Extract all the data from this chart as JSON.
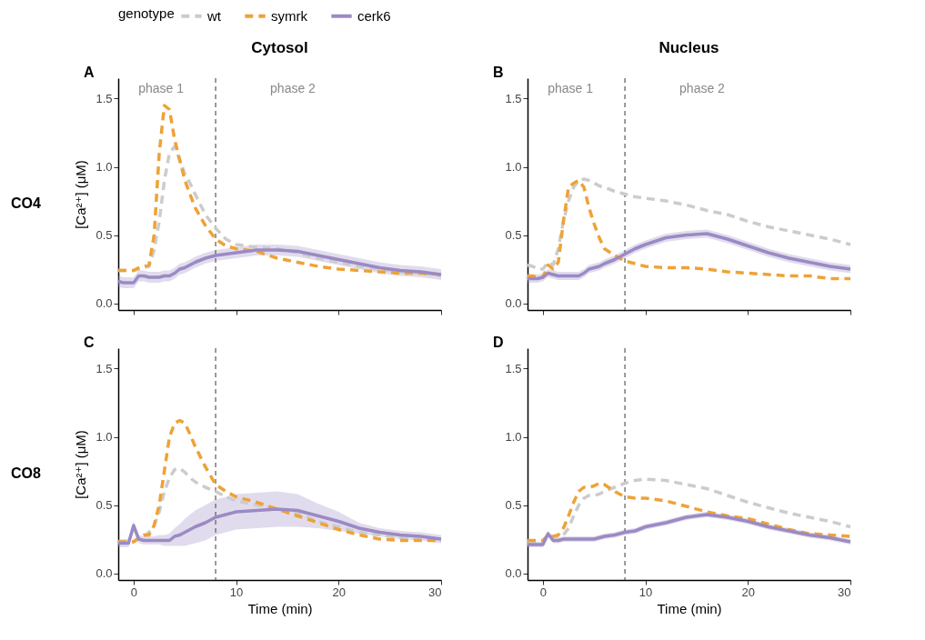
{
  "chart_data": [
    {
      "type": "line",
      "title": "Cytosol",
      "ylabel": "[Ca²⁺] (μM)",
      "legend_title": "genotype",
      "legend": "top",
      "tick_labels": "y",
      "annotations": [
        "A",
        "CO4",
        "phase 1",
        "phase 2"
      ],
      "ref_lines": [
        {
          "axis": "x",
          "value": 8,
          "color": "#666666",
          "line_style": "dashed"
        }
      ],
      "xlim": [
        -1.5,
        30
      ],
      "xticks": [
        0,
        10,
        20,
        30
      ],
      "ylim": [
        -0.05,
        1.65
      ],
      "yticks": [
        {
          "value": 0,
          "label": "0.0"
        },
        {
          "value": 0.5,
          "label": "0.5"
        },
        {
          "value": 1,
          "label": "1.0"
        },
        {
          "value": 1.5,
          "label": "1.5"
        }
      ],
      "x": [
        -1.5,
        -1,
        -0.5,
        0,
        0.5,
        1,
        1.5,
        2,
        2.5,
        3,
        3.5,
        4,
        4.5,
        5,
        5.5,
        6,
        7,
        8,
        9,
        10,
        12,
        14,
        16,
        18,
        20,
        22,
        24,
        26,
        28,
        30
      ],
      "series": [
        {
          "name": "wt",
          "color": "#cccccc",
          "line_style": "dashed",
          "values": [
            0.24,
            0.24,
            0.24,
            0.24,
            0.25,
            0.26,
            0.27,
            0.39,
            0.6,
            0.9,
            1.1,
            1.15,
            1.05,
            0.95,
            0.88,
            0.8,
            0.65,
            0.55,
            0.47,
            0.43,
            0.41,
            0.4,
            0.37,
            0.33,
            0.3,
            0.27,
            0.25,
            0.23,
            0.22,
            0.2
          ]
        },
        {
          "name": "symrk",
          "color": "#eea236",
          "line_style": "dashed",
          "values": [
            0.24,
            0.24,
            0.24,
            0.24,
            0.26,
            0.27,
            0.28,
            0.5,
            1.1,
            1.45,
            1.42,
            1.2,
            1.05,
            0.9,
            0.8,
            0.7,
            0.57,
            0.47,
            0.42,
            0.4,
            0.38,
            0.33,
            0.3,
            0.27,
            0.25,
            0.24,
            0.23,
            0.22,
            0.22,
            0.21
          ]
        },
        {
          "name": "cerk6",
          "color": "#9b8ac4",
          "line_style": "solid",
          "values": [
            0.16,
            0.15,
            0.15,
            0.15,
            0.2,
            0.2,
            0.19,
            0.19,
            0.19,
            0.2,
            0.2,
            0.22,
            0.25,
            0.26,
            0.28,
            0.3,
            0.33,
            0.35,
            0.36,
            0.37,
            0.39,
            0.39,
            0.38,
            0.35,
            0.32,
            0.29,
            0.26,
            0.24,
            0.23,
            0.21
          ],
          "lower": [
            0.12,
            0.11,
            0.11,
            0.11,
            0.16,
            0.16,
            0.15,
            0.15,
            0.15,
            0.16,
            0.16,
            0.18,
            0.21,
            0.22,
            0.24,
            0.26,
            0.29,
            0.31,
            0.32,
            0.33,
            0.35,
            0.35,
            0.34,
            0.31,
            0.28,
            0.25,
            0.22,
            0.2,
            0.19,
            0.17
          ],
          "upper": [
            0.2,
            0.19,
            0.19,
            0.19,
            0.24,
            0.24,
            0.23,
            0.23,
            0.23,
            0.24,
            0.24,
            0.26,
            0.29,
            0.3,
            0.32,
            0.34,
            0.37,
            0.39,
            0.4,
            0.41,
            0.43,
            0.43,
            0.42,
            0.39,
            0.36,
            0.33,
            0.3,
            0.28,
            0.27,
            0.25
          ]
        }
      ]
    },
    {
      "type": "line",
      "title": "Nucleus",
      "tick_labels": "y",
      "annotations": [
        "B",
        "phase 1",
        "phase 2"
      ],
      "ref_lines": [
        {
          "axis": "x",
          "value": 8,
          "color": "#666666",
          "line_style": "dashed"
        }
      ],
      "xlim": [
        -1.5,
        30
      ],
      "xticks": [
        0,
        10,
        20,
        30
      ],
      "ylim": [
        -0.05,
        1.65
      ],
      "yticks": [
        {
          "value": 0,
          "label": "0.0"
        },
        {
          "value": 0.5,
          "label": "0.5"
        },
        {
          "value": 1,
          "label": "1.0"
        },
        {
          "value": 1.5,
          "label": "1.5"
        }
      ],
      "x": [
        -1.5,
        -1,
        -0.5,
        0,
        0.5,
        1,
        1.5,
        2,
        2.5,
        3,
        3.5,
        4,
        4.5,
        5,
        5.5,
        6,
        7,
        8,
        9,
        10,
        12,
        14,
        16,
        18,
        20,
        22,
        24,
        26,
        28,
        30
      ],
      "series": [
        {
          "name": "wt",
          "color": "#cccccc",
          "line_style": "dashed",
          "values": [
            0.28,
            0.27,
            0.25,
            0.25,
            0.3,
            0.28,
            0.4,
            0.6,
            0.75,
            0.85,
            0.9,
            0.91,
            0.9,
            0.88,
            0.86,
            0.85,
            0.82,
            0.8,
            0.78,
            0.77,
            0.75,
            0.72,
            0.68,
            0.65,
            0.6,
            0.56,
            0.53,
            0.5,
            0.47,
            0.43
          ]
        },
        {
          "name": "symrk",
          "color": "#eea236",
          "line_style": "dashed",
          "values": [
            0.2,
            0.2,
            0.19,
            0.19,
            0.28,
            0.25,
            0.3,
            0.6,
            0.85,
            0.88,
            0.9,
            0.85,
            0.7,
            0.58,
            0.48,
            0.4,
            0.35,
            0.31,
            0.29,
            0.27,
            0.26,
            0.26,
            0.25,
            0.23,
            0.22,
            0.21,
            0.2,
            0.2,
            0.18,
            0.18
          ]
        },
        {
          "name": "cerk6",
          "color": "#9b8ac4",
          "line_style": "solid",
          "values": [
            0.18,
            0.18,
            0.18,
            0.19,
            0.22,
            0.21,
            0.2,
            0.2,
            0.2,
            0.2,
            0.2,
            0.22,
            0.25,
            0.26,
            0.27,
            0.29,
            0.32,
            0.36,
            0.4,
            0.43,
            0.48,
            0.5,
            0.51,
            0.47,
            0.42,
            0.37,
            0.33,
            0.3,
            0.27,
            0.25
          ],
          "lower": [
            0.15,
            0.15,
            0.15,
            0.16,
            0.19,
            0.18,
            0.17,
            0.17,
            0.17,
            0.17,
            0.17,
            0.19,
            0.22,
            0.23,
            0.24,
            0.26,
            0.29,
            0.33,
            0.37,
            0.4,
            0.45,
            0.47,
            0.48,
            0.44,
            0.39,
            0.34,
            0.3,
            0.27,
            0.24,
            0.22
          ],
          "upper": [
            0.21,
            0.21,
            0.21,
            0.22,
            0.25,
            0.24,
            0.23,
            0.23,
            0.23,
            0.23,
            0.23,
            0.25,
            0.28,
            0.29,
            0.3,
            0.32,
            0.35,
            0.39,
            0.43,
            0.46,
            0.51,
            0.53,
            0.54,
            0.5,
            0.45,
            0.4,
            0.36,
            0.33,
            0.3,
            0.28
          ]
        }
      ]
    },
    {
      "type": "line",
      "xlabel": "Time (min)",
      "ylabel": "[Ca²⁺] (μM)",
      "annotations": [
        "C",
        "CO8"
      ],
      "ref_lines": [
        {
          "axis": "x",
          "value": 8,
          "color": "#666666",
          "line_style": "dashed"
        }
      ],
      "xlim": [
        -1.5,
        30
      ],
      "xticks": [
        0,
        10,
        20,
        30
      ],
      "ylim": [
        -0.05,
        1.65
      ],
      "yticks": [
        {
          "value": 0,
          "label": "0.0"
        },
        {
          "value": 0.5,
          "label": "0.5"
        },
        {
          "value": 1,
          "label": "1.0"
        },
        {
          "value": 1.5,
          "label": "1.5"
        }
      ],
      "x": [
        -1.5,
        -1,
        -0.5,
        0,
        0.5,
        1,
        1.5,
        2,
        2.5,
        3,
        3.5,
        4,
        4.5,
        5,
        5.5,
        6,
        7,
        8,
        9,
        10,
        12,
        14,
        16,
        18,
        20,
        22,
        24,
        26,
        28,
        30
      ],
      "series": [
        {
          "name": "wt",
          "color": "#cccccc",
          "line_style": "dashed",
          "values": [
            0.23,
            0.23,
            0.23,
            0.23,
            0.25,
            0.27,
            0.3,
            0.35,
            0.45,
            0.6,
            0.7,
            0.76,
            0.77,
            0.74,
            0.7,
            0.67,
            0.63,
            0.6,
            0.56,
            0.53,
            0.5,
            0.47,
            0.44,
            0.38,
            0.34,
            0.3,
            0.28,
            0.26,
            0.25,
            0.24
          ]
        },
        {
          "name": "symrk",
          "color": "#eea236",
          "line_style": "dashed",
          "values": [
            0.23,
            0.23,
            0.23,
            0.23,
            0.26,
            0.28,
            0.28,
            0.35,
            0.5,
            0.75,
            1.0,
            1.1,
            1.12,
            1.1,
            1.02,
            0.93,
            0.78,
            0.65,
            0.6,
            0.56,
            0.52,
            0.47,
            0.42,
            0.37,
            0.32,
            0.28,
            0.25,
            0.24,
            0.24,
            0.24
          ]
        },
        {
          "name": "cerk6",
          "color": "#9b8ac4",
          "line_style": "solid",
          "values": [
            0.22,
            0.22,
            0.22,
            0.35,
            0.25,
            0.24,
            0.24,
            0.24,
            0.24,
            0.24,
            0.24,
            0.27,
            0.28,
            0.3,
            0.32,
            0.34,
            0.37,
            0.41,
            0.43,
            0.45,
            0.46,
            0.47,
            0.46,
            0.42,
            0.38,
            0.33,
            0.3,
            0.28,
            0.27,
            0.25
          ],
          "lower": [
            0.19,
            0.19,
            0.19,
            0.3,
            0.22,
            0.21,
            0.21,
            0.21,
            0.21,
            0.2,
            0.2,
            0.2,
            0.2,
            0.2,
            0.21,
            0.22,
            0.24,
            0.28,
            0.3,
            0.32,
            0.33,
            0.34,
            0.34,
            0.33,
            0.31,
            0.29,
            0.27,
            0.25,
            0.24,
            0.22
          ],
          "upper": [
            0.25,
            0.25,
            0.25,
            0.38,
            0.28,
            0.27,
            0.27,
            0.27,
            0.28,
            0.28,
            0.29,
            0.33,
            0.36,
            0.4,
            0.43,
            0.46,
            0.5,
            0.54,
            0.56,
            0.58,
            0.59,
            0.6,
            0.58,
            0.51,
            0.45,
            0.37,
            0.33,
            0.31,
            0.3,
            0.28
          ]
        }
      ]
    },
    {
      "type": "line",
      "xlabel": "Time (min)",
      "annotations": [
        "D"
      ],
      "ref_lines": [
        {
          "axis": "x",
          "value": 8,
          "color": "#666666",
          "line_style": "dashed"
        }
      ],
      "xlim": [
        -1.5,
        30
      ],
      "xticks": [
        0,
        10,
        20,
        30
      ],
      "ylim": [
        -0.05,
        1.65
      ],
      "yticks": [
        {
          "value": 0,
          "label": "0.0"
        },
        {
          "value": 0.5,
          "label": "0.5"
        },
        {
          "value": 1,
          "label": "1.0"
        },
        {
          "value": 1.5,
          "label": "1.5"
        }
      ],
      "x": [
        -1.5,
        -1,
        -0.5,
        0,
        0.5,
        1,
        1.5,
        2,
        2.5,
        3,
        3.5,
        4,
        4.5,
        5,
        5.5,
        6,
        7,
        8,
        9,
        10,
        12,
        14,
        16,
        18,
        20,
        22,
        24,
        26,
        28,
        30
      ],
      "series": [
        {
          "name": "wt",
          "color": "#cccccc",
          "line_style": "dashed",
          "values": [
            0.22,
            0.22,
            0.22,
            0.22,
            0.28,
            0.27,
            0.27,
            0.28,
            0.33,
            0.42,
            0.5,
            0.55,
            0.57,
            0.57,
            0.58,
            0.6,
            0.63,
            0.66,
            0.68,
            0.69,
            0.68,
            0.65,
            0.62,
            0.57,
            0.52,
            0.48,
            0.44,
            0.41,
            0.38,
            0.34
          ]
        },
        {
          "name": "symrk",
          "color": "#eea236",
          "line_style": "dashed",
          "values": [
            0.24,
            0.24,
            0.24,
            0.24,
            0.28,
            0.27,
            0.28,
            0.33,
            0.42,
            0.52,
            0.6,
            0.63,
            0.63,
            0.64,
            0.66,
            0.65,
            0.6,
            0.56,
            0.55,
            0.55,
            0.53,
            0.49,
            0.45,
            0.42,
            0.4,
            0.36,
            0.32,
            0.29,
            0.28,
            0.27
          ]
        },
        {
          "name": "cerk6",
          "color": "#9b8ac4",
          "line_style": "solid",
          "values": [
            0.21,
            0.21,
            0.21,
            0.21,
            0.29,
            0.24,
            0.24,
            0.25,
            0.25,
            0.25,
            0.25,
            0.25,
            0.25,
            0.25,
            0.26,
            0.27,
            0.28,
            0.3,
            0.31,
            0.34,
            0.37,
            0.41,
            0.43,
            0.41,
            0.38,
            0.34,
            0.31,
            0.28,
            0.26,
            0.23
          ],
          "lower": [
            0.19,
            0.19,
            0.19,
            0.19,
            0.27,
            0.22,
            0.22,
            0.23,
            0.23,
            0.23,
            0.23,
            0.23,
            0.23,
            0.23,
            0.24,
            0.25,
            0.26,
            0.28,
            0.29,
            0.32,
            0.35,
            0.39,
            0.41,
            0.39,
            0.36,
            0.32,
            0.29,
            0.26,
            0.24,
            0.21
          ],
          "upper": [
            0.23,
            0.23,
            0.23,
            0.23,
            0.31,
            0.26,
            0.26,
            0.27,
            0.27,
            0.27,
            0.27,
            0.27,
            0.27,
            0.27,
            0.28,
            0.29,
            0.3,
            0.32,
            0.33,
            0.36,
            0.39,
            0.43,
            0.45,
            0.43,
            0.4,
            0.36,
            0.33,
            0.3,
            0.28,
            0.25
          ]
        }
      ]
    }
  ]
}
